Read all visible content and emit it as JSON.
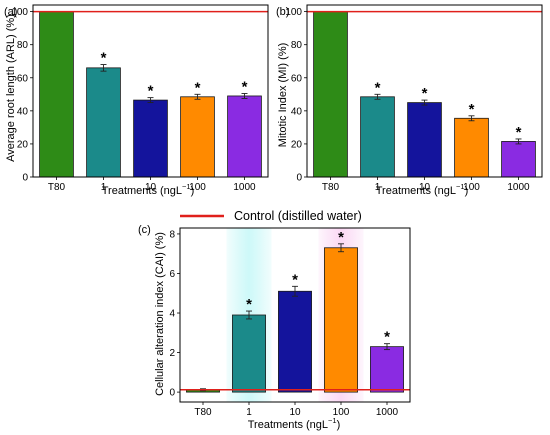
{
  "legend": {
    "label": "Control (distilled water)",
    "color": "#e0201b"
  },
  "bar_colors": [
    "#2e8b17",
    "#1b8a8a",
    "#14149c",
    "#ff8a00",
    "#8a2be2"
  ],
  "chart_data": [
    {
      "id": "a",
      "type": "bar",
      "panel_label": "(a)",
      "categories": [
        "T80",
        "1",
        "10",
        "100",
        "1000"
      ],
      "values": [
        100,
        66,
        46.5,
        48.5,
        49
      ],
      "errors": [
        0,
        2,
        1.5,
        1.5,
        1.5
      ],
      "significant": [
        false,
        true,
        true,
        true,
        true
      ],
      "reference_line": 100,
      "ylim": [
        0,
        104
      ],
      "yticks": [
        0,
        20,
        40,
        60,
        80,
        100
      ],
      "ylabel": "Average root length (ARL) (%)",
      "xlabel_main": "Treatments (ngL",
      "xlabel_sup": "−1",
      "xlabel_end": ")",
      "star": "*"
    },
    {
      "id": "b",
      "type": "bar",
      "panel_label": "(b)",
      "categories": [
        "T80",
        "1",
        "10",
        "100",
        "1000"
      ],
      "values": [
        100,
        48.5,
        45,
        35.5,
        21.5
      ],
      "errors": [
        0,
        1.5,
        1.5,
        1.5,
        1.5
      ],
      "significant": [
        false,
        true,
        true,
        true,
        true
      ],
      "reference_line": 100,
      "ylim": [
        0,
        104
      ],
      "yticks": [
        0,
        20,
        40,
        60,
        80,
        100
      ],
      "ylabel": "Mitotic Index (MI) (%)",
      "xlabel_main": "Treatments (ngL",
      "xlabel_sup": "−1",
      "xlabel_end": ")",
      "star": "*"
    },
    {
      "id": "c",
      "type": "bar",
      "panel_label": "(c)",
      "categories": [
        "T80",
        "1",
        "10",
        "100",
        "1000"
      ],
      "values": [
        0.12,
        3.9,
        5.1,
        7.3,
        2.3
      ],
      "errors": [
        0.05,
        0.2,
        0.25,
        0.2,
        0.15
      ],
      "significant": [
        false,
        true,
        true,
        true,
        true
      ],
      "reference_line": 0.12,
      "ylim": [
        -0.5,
        8.3
      ],
      "yticks": [
        0,
        2,
        4,
        6,
        8
      ],
      "ylabel": "Cellular alteration index (CAI) (%)",
      "xlabel_main": "Treatments (ngL",
      "xlabel_sup": "−1",
      "xlabel_end": ")",
      "star": "*",
      "glow": [
        false,
        true,
        false,
        true,
        false
      ]
    }
  ]
}
